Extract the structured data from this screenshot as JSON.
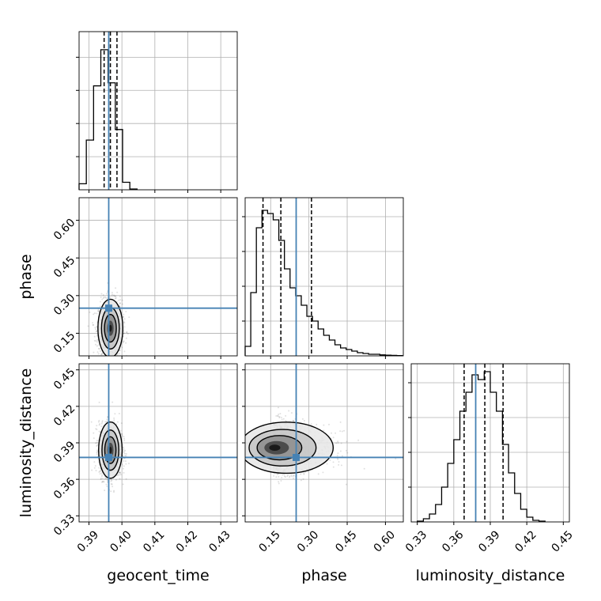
{
  "chart_data": {
    "type": "corner",
    "parameters": [
      "geocent_time",
      "phase",
      "luminosity_distance"
    ],
    "truths": {
      "geocent_time": 0.396,
      "phase": 0.25,
      "luminosity_distance": 0.378
    },
    "accent_color": "#4682b4",
    "panels": [
      {
        "id": "hist-geocent_time",
        "kind": "histogram",
        "param": "geocent_time",
        "xlim": [
          0.387,
          0.435
        ],
        "ylim": [
          0,
          1.05
        ],
        "bins": [
          [
            0.387,
            0.3892,
            0.04
          ],
          [
            0.3892,
            0.3914,
            0.33
          ],
          [
            0.3914,
            0.3936,
            0.69
          ],
          [
            0.3936,
            0.3958,
            0.93
          ],
          [
            0.3958,
            0.398,
            0.71
          ],
          [
            0.398,
            0.4002,
            0.4
          ],
          [
            0.4002,
            0.4024,
            0.05
          ],
          [
            0.4024,
            0.4046,
            0.005
          ]
        ],
        "quantiles": [
          0.3946,
          0.3965,
          0.3985
        ],
        "truth": 0.396
      },
      {
        "id": "hist-phase",
        "kind": "histogram",
        "param": "phase",
        "xlim": [
          0.05,
          0.67
        ],
        "ylim": [
          0,
          1.0
        ],
        "bins": [
          [
            0.05,
            0.072,
            0.06
          ],
          [
            0.072,
            0.094,
            0.4
          ],
          [
            0.094,
            0.116,
            0.81
          ],
          [
            0.116,
            0.138,
            0.92
          ],
          [
            0.138,
            0.16,
            0.9
          ],
          [
            0.16,
            0.182,
            0.86
          ],
          [
            0.182,
            0.204,
            0.73
          ],
          [
            0.204,
            0.226,
            0.55
          ],
          [
            0.226,
            0.248,
            0.43
          ],
          [
            0.248,
            0.27,
            0.38
          ],
          [
            0.27,
            0.292,
            0.32
          ],
          [
            0.292,
            0.314,
            0.25
          ],
          [
            0.314,
            0.336,
            0.22
          ],
          [
            0.336,
            0.358,
            0.17
          ],
          [
            0.358,
            0.38,
            0.13
          ],
          [
            0.38,
            0.402,
            0.1
          ],
          [
            0.402,
            0.424,
            0.07
          ],
          [
            0.424,
            0.446,
            0.05
          ],
          [
            0.446,
            0.468,
            0.04
          ],
          [
            0.468,
            0.49,
            0.03
          ],
          [
            0.49,
            0.512,
            0.02
          ],
          [
            0.512,
            0.534,
            0.015
          ],
          [
            0.534,
            0.556,
            0.01
          ],
          [
            0.556,
            0.578,
            0.01
          ],
          [
            0.578,
            0.6,
            0.006
          ],
          [
            0.6,
            0.622,
            0.004
          ],
          [
            0.622,
            0.644,
            0.003
          ],
          [
            0.644,
            0.666,
            0.002
          ]
        ],
        "quantiles": [
          0.12,
          0.19,
          0.31
        ],
        "truth": 0.25
      },
      {
        "id": "hist-luminosity_distance",
        "kind": "histogram",
        "param": "luminosity_distance",
        "xlim": [
          0.325,
          0.455
        ],
        "ylim": [
          0,
          1.0
        ],
        "bins": [
          [
            0.33,
            0.335,
            0.005
          ],
          [
            0.335,
            0.34,
            0.02
          ],
          [
            0.34,
            0.345,
            0.05
          ],
          [
            0.345,
            0.35,
            0.11
          ],
          [
            0.35,
            0.355,
            0.22
          ],
          [
            0.355,
            0.36,
            0.37
          ],
          [
            0.36,
            0.365,
            0.52
          ],
          [
            0.365,
            0.37,
            0.7
          ],
          [
            0.37,
            0.375,
            0.82
          ],
          [
            0.375,
            0.38,
            0.93
          ],
          [
            0.38,
            0.385,
            0.9
          ],
          [
            0.385,
            0.39,
            0.95
          ],
          [
            0.39,
            0.395,
            0.82
          ],
          [
            0.395,
            0.4,
            0.7
          ],
          [
            0.4,
            0.405,
            0.49
          ],
          [
            0.405,
            0.41,
            0.31
          ],
          [
            0.41,
            0.415,
            0.18
          ],
          [
            0.415,
            0.42,
            0.08
          ],
          [
            0.42,
            0.425,
            0.03
          ],
          [
            0.425,
            0.43,
            0.01
          ],
          [
            0.43,
            0.435,
            0.005
          ]
        ],
        "quantiles": [
          0.3685,
          0.3855,
          0.4005
        ],
        "truth": 0.378
      },
      {
        "id": "scatter-geocent_time-phase",
        "kind": "2d",
        "x": "geocent_time",
        "y": "phase",
        "xlim": [
          0.387,
          0.435
        ],
        "ylim": [
          0.06,
          0.69
        ],
        "center": [
          0.3965,
          0.17
        ],
        "spread": [
          0.0018,
          0.055
        ],
        "truth": [
          0.396,
          0.25
        ]
      },
      {
        "id": "scatter-geocent_time-luminosity_distance",
        "kind": "2d",
        "x": "geocent_time",
        "y": "luminosity_distance",
        "xlim": [
          0.387,
          0.435
        ],
        "ylim": [
          0.325,
          0.455
        ],
        "center": [
          0.3965,
          0.384
        ],
        "spread": [
          0.0017,
          0.011
        ],
        "truth": [
          0.396,
          0.378
        ]
      },
      {
        "id": "scatter-phase-luminosity_distance",
        "kind": "2d",
        "x": "phase",
        "y": "luminosity_distance",
        "xlim": [
          0.05,
          0.67
        ],
        "ylim": [
          0.325,
          0.455
        ],
        "center": [
          0.16,
          0.386
        ],
        "spread": [
          0.07,
          0.01
        ],
        "truth": [
          0.25,
          0.378
        ]
      }
    ],
    "axes": {
      "geocent_time": {
        "ticks": [
          0.39,
          0.4,
          0.41,
          0.42,
          0.43
        ],
        "tick_labels": [
          "0.39",
          "0.40",
          "0.41",
          "0.42",
          "0.43"
        ]
      },
      "phase": {
        "ticks": [
          0.15,
          0.3,
          0.45,
          0.6
        ],
        "tick_labels": [
          "0.15",
          "0.30",
          "0.45",
          "0.60"
        ]
      },
      "luminosity_distance": {
        "ticks": [
          0.33,
          0.36,
          0.39,
          0.42,
          0.45
        ],
        "tick_labels": [
          "0.33",
          "0.36",
          "0.39",
          "0.42",
          "0.45"
        ]
      }
    },
    "axis_labels": {
      "bottom": [
        "geocent_time",
        "phase",
        "luminosity_distance"
      ],
      "left": [
        "phase",
        "luminosity_distance"
      ]
    },
    "grid": true
  }
}
